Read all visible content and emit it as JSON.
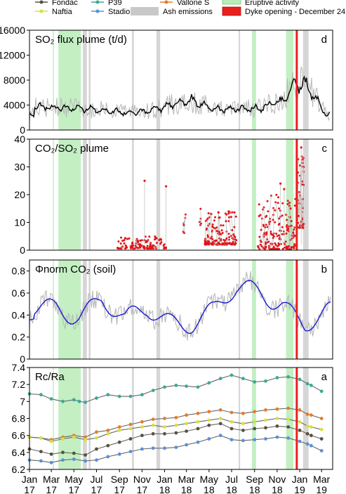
{
  "colors": {
    "fondac": "#5a5040",
    "p39": "#3aaa95",
    "vallone": "#e87a2a",
    "naftia": "#d6e040",
    "stadio": "#5b8fd6",
    "ash": "#c8c8c8",
    "eruptive": "#b8ecb8",
    "dyke": "#e8201c",
    "flux": "#000000",
    "flux_raw": "#b8b8b8",
    "ratio": "#e0161a",
    "soil": "#1a1ad0",
    "soil_raw": "#b8b8b8"
  },
  "legend": {
    "items": [
      {
        "key": "fondac",
        "label": "Fondac",
        "kind": "line"
      },
      {
        "key": "p39",
        "label": "P39",
        "kind": "line"
      },
      {
        "key": "vallone",
        "label": "Vallone S",
        "kind": "line"
      },
      {
        "key": "eruptive",
        "label": "Eruptive activity",
        "kind": "box"
      },
      {
        "key": "naftia",
        "label": "Naftia",
        "kind": "line"
      },
      {
        "key": "stadio",
        "label": "Stadio",
        "kind": "line"
      },
      {
        "key": "ash",
        "label": "Ash emissions",
        "kind": "box"
      },
      {
        "key": "dyke",
        "label": "Dyke opening - December 24",
        "kind": "box"
      }
    ]
  },
  "chart_data": [
    {
      "type": "line",
      "panel_letter": "d",
      "title": "SO₂ flux plume (t/d)",
      "ylim": [
        0,
        16000
      ],
      "yticks": [
        "0",
        "4000",
        "8000",
        "12000",
        "16000"
      ],
      "xlim": [
        "2017-01-01",
        "2019-03-31"
      ],
      "series": [
        {
          "key": "flux",
          "x": [
            "2017-01",
            "2017-03",
            "2017-05",
            "2017-07",
            "2017-09",
            "2017-11",
            "2018-01",
            "2018-03",
            "2018-05",
            "2018-07",
            "2018-09",
            "2018-11",
            "2018-12",
            "2019-01",
            "2019-03"
          ],
          "values": [
            3800,
            3600,
            3500,
            3200,
            2800,
            3000,
            3900,
            4800,
            3300,
            3400,
            3500,
            4600,
            7000,
            7500,
            2500
          ]
        }
      ]
    },
    {
      "type": "scatter",
      "panel_letter": "c",
      "title": "CO₂/SO₂ plume",
      "ylim": [
        0,
        40
      ],
      "yticks": [
        "0",
        "10",
        "20",
        "30",
        "40"
      ],
      "series": [
        {
          "key": "ratio",
          "x": [
            "2017-09",
            "2017-10",
            "2017-11",
            "2017-12",
            "2018-01",
            "2018-03",
            "2018-05",
            "2018-06",
            "2018-07",
            "2018-09",
            "2018-10",
            "2018-11",
            "2018-12",
            "2019-01"
          ],
          "values": [
            1,
            1.5,
            2,
            3,
            5,
            13,
            9,
            7,
            6,
            4,
            10,
            8,
            20,
            30
          ]
        }
      ]
    },
    {
      "type": "line",
      "panel_letter": "b",
      "title": "Φnorm CO₂ (soil)",
      "ylim": [
        0,
        0.9
      ],
      "yticks": [
        "0",
        "0.2",
        "0.4",
        "0.6",
        "0.8"
      ],
      "series": [
        {
          "key": "soil",
          "x": [
            "2017-01",
            "2017-03",
            "2017-05",
            "2017-07",
            "2017-09",
            "2017-11",
            "2018-01",
            "2018-03",
            "2018-05",
            "2018-07",
            "2018-09",
            "2018-11",
            "2019-01",
            "2019-03"
          ],
          "values": [
            0.42,
            0.48,
            0.44,
            0.55,
            0.3,
            0.44,
            0.38,
            0.36,
            0.42,
            0.6,
            0.62,
            0.55,
            0.32,
            0.38
          ]
        }
      ]
    },
    {
      "type": "line",
      "panel_letter": "a",
      "title": "Rc/Ra",
      "ylim": [
        6.2,
        7.4
      ],
      "yticks": [
        "6.2",
        "6.4",
        "6.6",
        "6.8",
        "7",
        "7.2",
        "7.4"
      ],
      "xticks": [
        {
          "m": "Jan",
          "y": "17"
        },
        {
          "m": "Mar",
          "y": "17"
        },
        {
          "m": "May",
          "y": "17"
        },
        {
          "m": "Jul",
          "y": "17"
        },
        {
          "m": "Sep",
          "y": "17"
        },
        {
          "m": "Nov",
          "y": "17"
        },
        {
          "m": "Jan",
          "y": "18"
        },
        {
          "m": "Mar",
          "y": "18"
        },
        {
          "m": "May",
          "y": "18"
        },
        {
          "m": "Jul",
          "y": "18"
        },
        {
          "m": "Sep",
          "y": "18"
        },
        {
          "m": "Nov",
          "y": "18"
        },
        {
          "m": "Jan",
          "y": "19"
        },
        {
          "m": "Mar",
          "y": "19"
        }
      ],
      "series": [
        {
          "key": "p39",
          "name": "P39",
          "x": [
            0,
            1,
            2,
            3,
            4,
            4.5,
            5,
            6,
            7,
            8,
            9,
            10,
            11,
            12,
            13,
            14,
            15,
            16,
            17,
            18,
            19,
            20,
            21,
            22,
            23,
            24,
            24.7,
            25,
            26
          ],
          "values": [
            7.09,
            7.08,
            7.03,
            7.0,
            7.02,
            7.0,
            6.99,
            7.04,
            7.08,
            7.06,
            7.06,
            7.08,
            7.13,
            7.17,
            7.19,
            7.18,
            7.17,
            7.22,
            7.27,
            7.31,
            7.27,
            7.23,
            7.24,
            7.28,
            7.29,
            7.26,
            7.21,
            7.19,
            7.12
          ]
        },
        {
          "key": "vallone",
          "name": "Vallone S",
          "x": [
            0,
            1,
            2,
            3,
            4,
            5,
            6,
            7,
            8,
            9,
            10,
            11,
            12,
            13,
            14,
            15,
            16,
            17,
            18,
            19,
            20,
            21,
            22,
            23,
            24,
            24.7,
            25,
            26
          ],
          "values": [
            6.58,
            6.57,
            6.55,
            6.58,
            6.6,
            6.58,
            6.64,
            6.66,
            6.7,
            6.73,
            6.76,
            6.79,
            6.8,
            6.81,
            6.84,
            6.86,
            6.88,
            6.9,
            6.87,
            6.86,
            6.88,
            6.9,
            6.91,
            6.92,
            6.9,
            6.85,
            6.84,
            6.8
          ]
        },
        {
          "key": "naftia",
          "name": "Naftia",
          "x": [
            0,
            1,
            2,
            3,
            4,
            5,
            6,
            7,
            8,
            9,
            10,
            11,
            12,
            13,
            14,
            15,
            16,
            17,
            18,
            19,
            20,
            21,
            22,
            23,
            24,
            24.7,
            25,
            26
          ],
          "values": [
            6.58,
            6.57,
            6.53,
            6.56,
            6.58,
            6.55,
            6.57,
            6.62,
            6.66,
            6.68,
            6.7,
            6.72,
            6.7,
            6.72,
            6.74,
            6.76,
            6.78,
            6.8,
            6.76,
            6.74,
            6.76,
            6.78,
            6.8,
            6.79,
            6.76,
            6.71,
            6.7,
            6.67
          ]
        },
        {
          "key": "fondac",
          "name": "Fondac",
          "x": [
            0,
            1,
            2,
            3,
            4,
            5,
            6,
            7,
            8,
            9,
            10,
            11,
            12,
            13,
            14,
            15,
            16,
            17,
            18,
            19,
            20,
            21,
            22,
            23,
            24,
            24.7,
            25,
            26
          ],
          "values": [
            6.44,
            6.41,
            6.38,
            6.4,
            6.39,
            6.37,
            6.44,
            6.48,
            6.52,
            6.56,
            6.6,
            6.62,
            6.62,
            6.63,
            6.65,
            6.68,
            6.72,
            6.74,
            6.68,
            6.66,
            6.68,
            6.69,
            6.71,
            6.7,
            6.66,
            6.62,
            6.6,
            6.56
          ]
        },
        {
          "key": "stadio",
          "name": "Stadio",
          "x": [
            0,
            1,
            2,
            3,
            4,
            5,
            6,
            7,
            8,
            9,
            10,
            11,
            12,
            13,
            14,
            15,
            16,
            17,
            18,
            19,
            20,
            21,
            22,
            23,
            24,
            24.7,
            25,
            26
          ],
          "values": [
            6.31,
            6.3,
            6.28,
            6.31,
            6.32,
            6.3,
            6.31,
            6.35,
            6.38,
            6.41,
            6.44,
            6.45,
            6.45,
            6.46,
            6.49,
            6.52,
            6.56,
            6.6,
            6.55,
            6.54,
            6.55,
            6.56,
            6.58,
            6.57,
            6.53,
            6.5,
            6.48,
            6.42
          ]
        }
      ]
    }
  ],
  "eruptive_periods": [
    [
      "2017-03-05",
      "2017-03-08"
    ],
    [
      "2017-03-20",
      "2017-05-20"
    ],
    [
      "2018-08-25",
      "2018-09-05"
    ],
    [
      "2018-11-25",
      "2018-12-15"
    ]
  ],
  "ash_periods": [
    [
      "2017-05-25",
      "2017-06-05"
    ],
    [
      "2017-06-10",
      "2017-06-15"
    ],
    [
      "2017-10-05",
      "2017-10-10"
    ],
    [
      "2017-12-10",
      "2017-12-20"
    ],
    [
      "2018-07-20",
      "2018-07-24"
    ],
    [
      "2019-01-10",
      "2019-01-25"
    ]
  ],
  "dyke_date": "2018-12-24"
}
